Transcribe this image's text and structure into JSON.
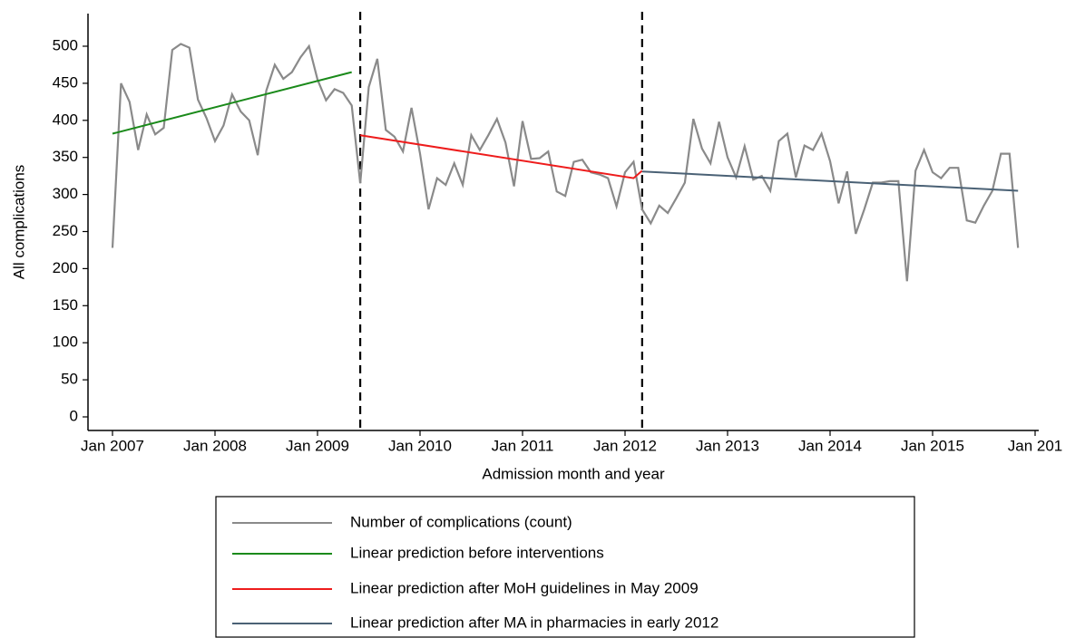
{
  "chart_data": {
    "type": "line",
    "xlabel": "Admission month and year",
    "ylabel": "All complications",
    "x": [
      "2007-01",
      "2007-02",
      "2007-03",
      "2007-04",
      "2007-05",
      "2007-06",
      "2007-07",
      "2007-08",
      "2007-09",
      "2007-10",
      "2007-11",
      "2007-12",
      "2008-01",
      "2008-02",
      "2008-03",
      "2008-04",
      "2008-05",
      "2008-06",
      "2008-07",
      "2008-08",
      "2008-09",
      "2008-10",
      "2008-11",
      "2008-12",
      "2009-01",
      "2009-02",
      "2009-03",
      "2009-04",
      "2009-05",
      "2009-06",
      "2009-07",
      "2009-08",
      "2009-09",
      "2009-10",
      "2009-11",
      "2009-12",
      "2010-01",
      "2010-02",
      "2010-03",
      "2010-04",
      "2010-05",
      "2010-06",
      "2010-07",
      "2010-08",
      "2010-09",
      "2010-10",
      "2010-11",
      "2010-12",
      "2011-01",
      "2011-02",
      "2011-03",
      "2011-04",
      "2011-05",
      "2011-06",
      "2011-07",
      "2011-08",
      "2011-09",
      "2011-10",
      "2011-11",
      "2011-12",
      "2012-01",
      "2012-02",
      "2012-03",
      "2012-04",
      "2012-05",
      "2012-06",
      "2012-07",
      "2012-08",
      "2012-09",
      "2012-10",
      "2012-11",
      "2012-12",
      "2013-01",
      "2013-02",
      "2013-03",
      "2013-04",
      "2013-05",
      "2013-06",
      "2013-07",
      "2013-08",
      "2013-09",
      "2013-10",
      "2013-11",
      "2013-12",
      "2014-01",
      "2014-02",
      "2014-03",
      "2014-04",
      "2014-05",
      "2014-06",
      "2014-07",
      "2014-08",
      "2014-09",
      "2014-10",
      "2014-11",
      "2014-12",
      "2015-01",
      "2015-02",
      "2015-03",
      "2015-04",
      "2015-05",
      "2015-06",
      "2015-07",
      "2015-08",
      "2015-09",
      "2015-10",
      "2015-11"
    ],
    "series": [
      {
        "name": "Number of complications (count)",
        "color": "#8a8a8a",
        "values": [
          228,
          450,
          425,
          360,
          408,
          381,
          390,
          495,
          503,
          498,
          428,
          403,
          372,
          393,
          435,
          412,
          400,
          353,
          440,
          475,
          456,
          465,
          485,
          500,
          455,
          427,
          442,
          437,
          420,
          315,
          445,
          483,
          387,
          378,
          358,
          417,
          355,
          280,
          322,
          313,
          342,
          313,
          380,
          360,
          380,
          402,
          370,
          311,
          399,
          348,
          349,
          358,
          304,
          298,
          344,
          347,
          330,
          327,
          322,
          284,
          330,
          344,
          280,
          261,
          285,
          275,
          295,
          316,
          402,
          362,
          342,
          398,
          350,
          323,
          365,
          320,
          325,
          305,
          372,
          382,
          323,
          366,
          360,
          382,
          345,
          288,
          331,
          247,
          280,
          316,
          316,
          318,
          318,
          183,
          332,
          360,
          330,
          322,
          336,
          336,
          265,
          262,
          285,
          305,
          355,
          355,
          228
        ]
      },
      {
        "name": "Linear prediction before interventions",
        "color": "#1a8a1a",
        "x": [
          "2007-01",
          "2009-05"
        ],
        "values": [
          382,
          465
        ]
      },
      {
        "name": "Linear prediction after MoH guidelines in May 2009",
        "color": "#ee1c1c",
        "x": [
          "2009-06",
          "2012-02",
          "2012-03"
        ],
        "values": [
          380,
          322,
          332
        ]
      },
      {
        "name": "Linear prediction after MA in pharmacies in early 2012",
        "color": "#4a6175",
        "x": [
          "2012-03",
          "2015-11"
        ],
        "values": [
          331,
          305
        ]
      }
    ],
    "vlines": [
      "2009-06",
      "2012-03"
    ],
    "xlim": [
      "2007-01",
      "2016-01"
    ],
    "xticks": [
      {
        "value": "2007-01",
        "label": "Jan 2007"
      },
      {
        "value": "2008-01",
        "label": "Jan 2008"
      },
      {
        "value": "2009-01",
        "label": "Jan 2009"
      },
      {
        "value": "2010-01",
        "label": "Jan 2010"
      },
      {
        "value": "2011-01",
        "label": "Jan 2011"
      },
      {
        "value": "2012-01",
        "label": "Jan 2012"
      },
      {
        "value": "2013-01",
        "label": "Jan 2013"
      },
      {
        "value": "2014-01",
        "label": "Jan 2014"
      },
      {
        "value": "2015-01",
        "label": "Jan 2015"
      },
      {
        "value": "2016-01",
        "label": "Jan 201"
      }
    ],
    "ylim": [
      0,
      500
    ],
    "yticks": [
      0,
      50,
      100,
      150,
      200,
      250,
      300,
      350,
      400,
      450,
      500
    ]
  }
}
